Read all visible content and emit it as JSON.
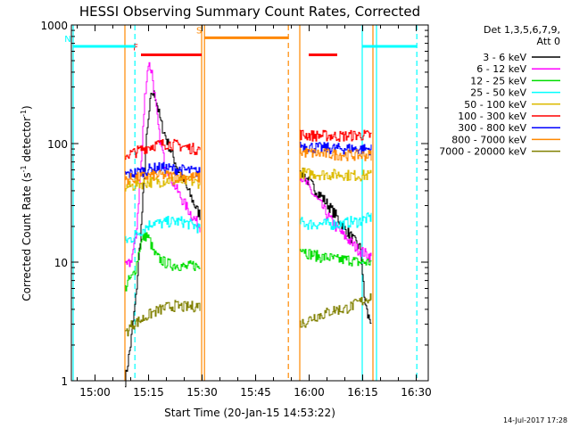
{
  "chart_data": {
    "type": "line",
    "title": "HESSI Observing Summary Count Rates, Corrected",
    "xlabel": "Start Time (20-Jan-15 14:53:22)",
    "ylabel": "Corrected Count Rate (s",
    "ylabel_sup1": "-1",
    "ylabel_mid": " detector",
    "ylabel_sup2": "-1",
    "ylabel_end": ")",
    "yscale": "log",
    "xlim_minutes": [
      0,
      100
    ],
    "ylim": [
      1,
      1000
    ],
    "x_ticks": [
      {
        "label": "15:00",
        "t": 6.63
      },
      {
        "label": "15:15",
        "t": 21.63
      },
      {
        "label": "15:30",
        "t": 36.63
      },
      {
        "label": "15:45",
        "t": 51.63
      },
      {
        "label": "16:00",
        "t": 66.63
      },
      {
        "label": "16:15",
        "t": 81.63
      },
      {
        "label": "16:30",
        "t": 96.63
      }
    ],
    "y_ticks": [
      {
        "label": "1",
        "v": 1
      },
      {
        "label": "10",
        "v": 10
      },
      {
        "label": "100",
        "v": 100
      },
      {
        "label": "1000",
        "v": 1000
      }
    ],
    "legend": {
      "header1": "Det 1,3,5,6,7,9,",
      "header2": "Att 0",
      "position": "right"
    },
    "series": [
      {
        "name": "3 - 6 keV",
        "color": "#000000",
        "segments": [
          [
            [
              15,
              1
            ],
            [
              16.5,
              2
            ],
            [
              18,
              5
            ],
            [
              19.5,
              20
            ],
            [
              21,
              110
            ],
            [
              22,
              220
            ],
            [
              22.5,
              270
            ],
            [
              23.5,
              250
            ],
            [
              25,
              150
            ],
            [
              27,
              100
            ],
            [
              29,
              70
            ],
            [
              31,
              50
            ],
            [
              33,
              38
            ],
            [
              35,
              28
            ],
            [
              36,
              25
            ]
          ],
          [
            [
              64,
              60
            ],
            [
              66,
              50
            ],
            [
              68,
              42
            ],
            [
              70,
              36
            ],
            [
              72,
              30
            ],
            [
              74,
              25
            ],
            [
              76,
              20
            ],
            [
              78,
              17
            ],
            [
              80,
              14
            ],
            [
              81,
              13
            ],
            [
              82,
              5
            ],
            [
              83,
              3.5
            ],
            [
              84,
              3.2
            ]
          ]
        ]
      },
      {
        "name": "6 - 12 keV",
        "color": "#ff00ff",
        "segments": [
          [
            [
              15,
              9
            ],
            [
              16.5,
              10
            ],
            [
              18,
              16
            ],
            [
              19.5,
              70
            ],
            [
              20.5,
              250
            ],
            [
              21.5,
              480
            ],
            [
              22.5,
              400
            ],
            [
              23.5,
              220
            ],
            [
              24.5,
              120
            ],
            [
              26,
              70
            ],
            [
              28,
              50
            ],
            [
              30,
              38
            ],
            [
              32,
              30
            ],
            [
              34,
              24
            ],
            [
              36,
              20
            ]
          ],
          [
            [
              64,
              55
            ],
            [
              66,
              45
            ],
            [
              68,
              36
            ],
            [
              70,
              30
            ],
            [
              72,
              24
            ],
            [
              74,
              20
            ],
            [
              76,
              17
            ],
            [
              78,
              15
            ],
            [
              80,
              13
            ],
            [
              82,
              12
            ],
            [
              84,
              11
            ]
          ]
        ]
      },
      {
        "name": "12 - 25 keV",
        "color": "#00dd00",
        "segments": [
          [
            [
              15,
              6
            ],
            [
              16,
              7
            ],
            [
              17,
              7.5
            ],
            [
              18,
              9
            ],
            [
              19,
              13
            ],
            [
              20,
              16
            ],
            [
              21,
              17
            ],
            [
              22,
              15
            ],
            [
              23,
              12
            ],
            [
              24,
              11
            ],
            [
              26,
              10
            ],
            [
              28,
              9.5
            ],
            [
              30,
              9.5
            ],
            [
              32,
              9
            ],
            [
              34,
              9.5
            ],
            [
              36,
              9
            ]
          ],
          [
            [
              64,
              14
            ],
            [
              66,
              12
            ],
            [
              68,
              11.5
            ],
            [
              70,
              11
            ],
            [
              72,
              11
            ],
            [
              74,
              10.5
            ],
            [
              76,
              10.5
            ],
            [
              78,
              10.5
            ],
            [
              80,
              10
            ],
            [
              82,
              10
            ],
            [
              84,
              10
            ]
          ]
        ]
      },
      {
        "name": "25 - 50 keV",
        "color": "#00ffff",
        "segments": [
          [
            [
              15,
              15
            ],
            [
              17,
              16
            ],
            [
              19,
              18
            ],
            [
              21,
              20
            ],
            [
              23,
              22
            ],
            [
              25,
              21
            ],
            [
              27,
              22
            ],
            [
              29,
              22
            ],
            [
              31,
              22
            ],
            [
              33,
              21
            ],
            [
              35,
              20
            ],
            [
              36,
              19
            ]
          ],
          [
            [
              64,
              22
            ],
            [
              66,
              21
            ],
            [
              68,
              21
            ],
            [
              70,
              21
            ],
            [
              72,
              21
            ],
            [
              74,
              21
            ],
            [
              76,
              21
            ],
            [
              78,
              22
            ],
            [
              80,
              22
            ],
            [
              82,
              23
            ],
            [
              84,
              24
            ]
          ]
        ]
      },
      {
        "name": "50 - 100 keV",
        "color": "#ddbb00",
        "segments": [
          [
            [
              15,
              43
            ],
            [
              17,
              44
            ],
            [
              19,
              46
            ],
            [
              21,
              47
            ],
            [
              23,
              48
            ],
            [
              25,
              48
            ],
            [
              27,
              49
            ],
            [
              29,
              48
            ],
            [
              31,
              48
            ],
            [
              33,
              48
            ],
            [
              35,
              47
            ],
            [
              36,
              47
            ]
          ],
          [
            [
              64,
              57
            ],
            [
              66,
              56
            ],
            [
              68,
              56
            ],
            [
              70,
              55
            ],
            [
              72,
              55
            ],
            [
              74,
              55
            ],
            [
              76,
              55
            ],
            [
              78,
              54
            ],
            [
              80,
              54
            ],
            [
              82,
              54
            ],
            [
              84,
              54
            ]
          ]
        ]
      },
      {
        "name": "100 - 300 keV",
        "color": "#ff0000",
        "segments": [
          [
            [
              15,
              80
            ],
            [
              17,
              83
            ],
            [
              19,
              88
            ],
            [
              21,
              93
            ],
            [
              23,
              97
            ],
            [
              25,
              99
            ],
            [
              27,
              100
            ],
            [
              29,
              98
            ],
            [
              31,
              95
            ],
            [
              33,
              92
            ],
            [
              35,
              90
            ],
            [
              36,
              90
            ]
          ],
          [
            [
              64,
              120
            ],
            [
              66,
              118
            ],
            [
              68,
              117
            ],
            [
              70,
              117
            ],
            [
              72,
              117
            ],
            [
              74,
              116
            ],
            [
              76,
              116
            ],
            [
              78,
              117
            ],
            [
              80,
              118
            ],
            [
              82,
              118
            ],
            [
              84,
              117
            ]
          ]
        ]
      },
      {
        "name": "300 - 800 keV",
        "color": "#0000ff",
        "segments": [
          [
            [
              15,
              55
            ],
            [
              17,
              56
            ],
            [
              19,
              58
            ],
            [
              21,
              60
            ],
            [
              23,
              62
            ],
            [
              25,
              63
            ],
            [
              27,
              62
            ],
            [
              29,
              61
            ],
            [
              31,
              60
            ],
            [
              33,
              59
            ],
            [
              35,
              58
            ],
            [
              36,
              57
            ]
          ],
          [
            [
              64,
              97
            ],
            [
              66,
              95
            ],
            [
              68,
              93
            ],
            [
              70,
              92
            ],
            [
              72,
              92
            ],
            [
              74,
              91
            ],
            [
              76,
              91
            ],
            [
              78,
              91
            ],
            [
              80,
              90
            ],
            [
              82,
              90
            ],
            [
              84,
              90
            ]
          ]
        ]
      },
      {
        "name": "800 - 7000 keV",
        "color": "#ff8800",
        "segments": [
          [
            [
              15,
              50
            ],
            [
              17,
              51
            ],
            [
              19,
              52
            ],
            [
              21,
              53
            ],
            [
              23,
              54
            ],
            [
              25,
              54
            ],
            [
              27,
              54
            ],
            [
              29,
              53
            ],
            [
              31,
              53
            ],
            [
              33,
              52
            ],
            [
              35,
              52
            ],
            [
              36,
              51
            ]
          ],
          [
            [
              64,
              85
            ],
            [
              66,
              84
            ],
            [
              68,
              83
            ],
            [
              70,
              82
            ],
            [
              72,
              82
            ],
            [
              74,
              81
            ],
            [
              76,
              81
            ],
            [
              78,
              80
            ],
            [
              80,
              80
            ],
            [
              82,
              80
            ],
            [
              84,
              80
            ]
          ]
        ]
      },
      {
        "name": "7000 - 20000 keV",
        "color": "#808000",
        "segments": [
          [
            [
              15,
              2.5
            ],
            [
              17,
              3
            ],
            [
              19,
              3.2
            ],
            [
              21,
              3.5
            ],
            [
              23,
              3.8
            ],
            [
              25,
              4
            ],
            [
              27,
              4.2
            ],
            [
              29,
              4.3
            ],
            [
              31,
              4.2
            ],
            [
              33,
              4.2
            ],
            [
              35,
              4.3
            ],
            [
              36,
              4.3
            ]
          ],
          [
            [
              64,
              3
            ],
            [
              66,
              3.2
            ],
            [
              68,
              3.5
            ],
            [
              70,
              3.6
            ],
            [
              72,
              3.8
            ],
            [
              74,
              4
            ],
            [
              76,
              4
            ],
            [
              78,
              4.2
            ],
            [
              80,
              4.5
            ],
            [
              82,
              4.8
            ],
            [
              84,
              5.2
            ]
          ]
        ]
      }
    ],
    "flags": [
      {
        "label": "F",
        "color": "#ff0000",
        "level": 560,
        "spans": [
          [
            19.5,
            36.5
          ],
          [
            66.5,
            74.5
          ]
        ]
      },
      {
        "label": "S",
        "color": "#ff8800",
        "level": 780,
        "spans": [
          [
            37.3,
            60.8
          ]
        ]
      },
      {
        "label": "N",
        "color": "#00ffff",
        "level": 660,
        "spans": [
          [
            0.5,
            17.8
          ],
          [
            81.5,
            96.8
          ]
        ]
      }
    ],
    "vlines": [
      {
        "t": 17.8,
        "color": "#00ffff",
        "dashed": true
      },
      {
        "t": 37.3,
        "color": "#ff8800",
        "dashed": false
      },
      {
        "t": 60.8,
        "color": "#ff8800",
        "dashed": true
      },
      {
        "t": 81.5,
        "color": "#00ffff",
        "dashed": false
      },
      {
        "t": 85.5,
        "color": "#00ffff",
        "dashed": false
      },
      {
        "t": 96.8,
        "color": "#00ffff",
        "dashed": true
      }
    ],
    "frame_lines": [
      {
        "t": 0.5,
        "color": "#00ffff"
      },
      {
        "t": 15,
        "color": "#ff8800"
      },
      {
        "t": 36.5,
        "color": "#ff8800"
      },
      {
        "t": 64,
        "color": "#ff8800"
      },
      {
        "t": 84.5,
        "color": "#ff8800"
      }
    ],
    "timestamp": "14-Jul-2017 17:28"
  }
}
